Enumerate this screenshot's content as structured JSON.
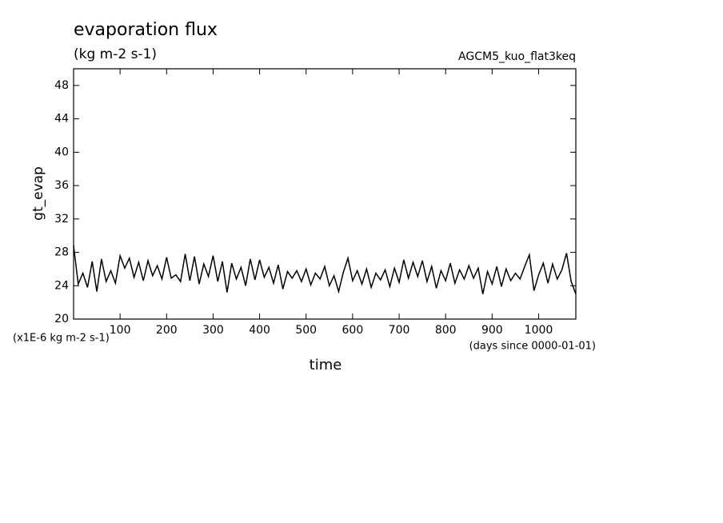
{
  "chart_data": {
    "type": "line",
    "title": "evaporation flux",
    "subtitle": "(kg m-2 s-1)",
    "annotation": "AGCM5_kuo_flat3keq",
    "x_label": "time",
    "y_label": "gt_evap",
    "y_unit_label": "(x1E-6 kg m-2 s-1)",
    "x_unit_label": "(days since 0000-01-01)",
    "x": [
      0,
      10,
      20,
      30,
      40,
      50,
      60,
      70,
      80,
      90,
      100,
      110,
      120,
      130,
      140,
      150,
      160,
      170,
      180,
      190,
      200,
      210,
      220,
      230,
      240,
      250,
      260,
      270,
      280,
      290,
      300,
      310,
      320,
      330,
      340,
      350,
      360,
      370,
      380,
      390,
      400,
      410,
      420,
      430,
      440,
      450,
      460,
      470,
      480,
      490,
      500,
      510,
      520,
      530,
      540,
      550,
      560,
      570,
      580,
      590,
      600,
      610,
      620,
      630,
      640,
      650,
      660,
      670,
      680,
      690,
      700,
      710,
      720,
      730,
      740,
      750,
      760,
      770,
      780,
      790,
      800,
      810,
      820,
      830,
      840,
      850,
      860,
      870,
      880,
      890,
      900,
      910,
      920,
      930,
      940,
      950,
      960,
      970,
      980,
      990,
      1000,
      1010,
      1020,
      1030,
      1040,
      1050,
      1060,
      1070,
      1080
    ],
    "series": [
      {
        "name": "gt_evap",
        "color": "#000000",
        "values": [
          28.8,
          24.2,
          25.5,
          23.8,
          26.9,
          23.3,
          27.2,
          24.5,
          25.8,
          24.3,
          27.6,
          26.1,
          27.3,
          25.0,
          26.8,
          24.6,
          27.0,
          25.2,
          26.4,
          24.8,
          27.4,
          24.9,
          25.3,
          24.5,
          27.8,
          24.6,
          27.5,
          24.2,
          26.6,
          25.1,
          27.6,
          24.5,
          26.9,
          23.2,
          26.7,
          24.8,
          26.2,
          24.0,
          27.2,
          24.7,
          27.1,
          25.0,
          26.2,
          24.3,
          26.5,
          23.6,
          25.7,
          24.9,
          25.8,
          24.5,
          26.0,
          24.1,
          25.5,
          24.8,
          26.3,
          24.0,
          25.2,
          23.3,
          25.6,
          27.3,
          24.6,
          25.8,
          24.2,
          26.0,
          23.8,
          25.5,
          24.7,
          25.9,
          23.9,
          26.1,
          24.4,
          27.1,
          24.9,
          26.8,
          25.1,
          27.0,
          24.5,
          26.3,
          23.7,
          25.8,
          24.6,
          26.7,
          24.3,
          25.9,
          24.8,
          26.4,
          24.9,
          26.1,
          23.0,
          25.7,
          24.2,
          26.3,
          23.9,
          26.0,
          24.6,
          25.5,
          24.8,
          26.3,
          27.7,
          23.4,
          25.3,
          26.7,
          24.3,
          26.6,
          24.8,
          25.9,
          27.9,
          24.5,
          23.0
        ]
      }
    ],
    "xlim": [
      0,
      1080
    ],
    "xticks": [
      100,
      200,
      300,
      400,
      500,
      600,
      700,
      800,
      900,
      1000
    ],
    "ylim": [
      20,
      50
    ],
    "yticks": [
      20,
      24,
      28,
      32,
      36,
      40,
      44,
      48
    ],
    "grid": false
  }
}
